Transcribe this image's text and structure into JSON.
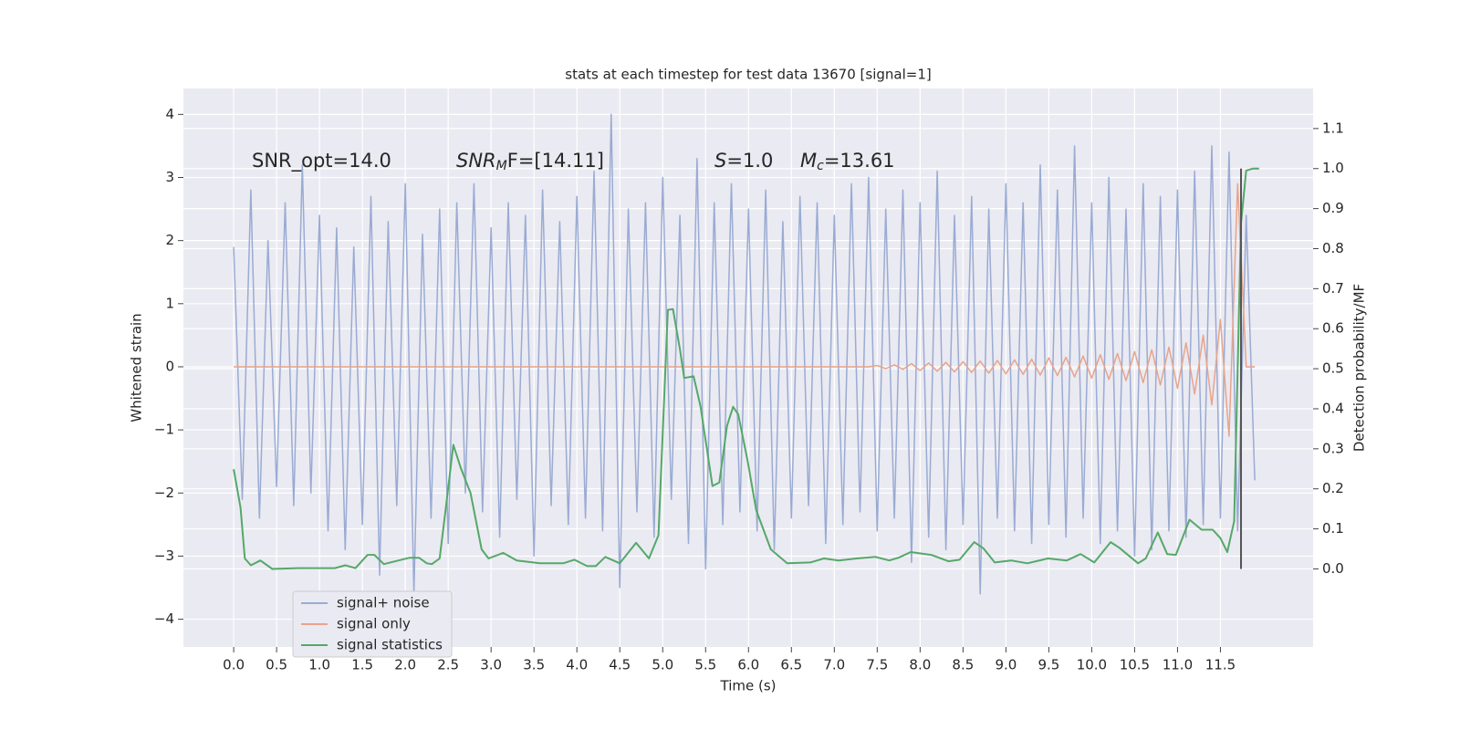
{
  "chart_data": {
    "type": "line",
    "title": "stats at each timestep for test data 13670 [signal=1]",
    "xlabel": "Time (s)",
    "ylabel": "Whitened strain",
    "y2label": "Detection probability/MF",
    "annotations": [
      [
        {
          "text": "SNR_opt=14.0",
          "style": "normal"
        }
      ],
      [
        {
          "text": "SNR",
          "style": "italic"
        },
        {
          "text": "M",
          "style": "sub"
        },
        {
          "text": "F=[14.11]",
          "style": "normal"
        }
      ],
      [
        {
          "text": "S",
          "style": "italic"
        },
        {
          "text": "=1.0",
          "style": "normal"
        }
      ],
      [
        {
          "text": "M",
          "style": "italic"
        },
        {
          "text": "c",
          "style": "sub"
        },
        {
          "text": "=13.61",
          "style": "normal"
        }
      ]
    ],
    "xlim": [
      -0.586,
      12.58
    ],
    "ylim": [
      -4.44,
      4.41
    ],
    "y2lim": [
      -0.195,
      1.2
    ],
    "xticks": [
      {
        "value": 0,
        "label": "0.0"
      },
      {
        "value": 0.5,
        "label": "0.5"
      },
      {
        "value": 1,
        "label": "1.0"
      },
      {
        "value": 1.5,
        "label": "1.5"
      },
      {
        "value": 2,
        "label": "2.0"
      },
      {
        "value": 2.5,
        "label": "2.5"
      },
      {
        "value": 3,
        "label": "3.0"
      },
      {
        "value": 3.5,
        "label": "3.5"
      },
      {
        "value": 4,
        "label": "4.0"
      },
      {
        "value": 4.5,
        "label": "4.5"
      },
      {
        "value": 5,
        "label": "5.0"
      },
      {
        "value": 5.5,
        "label": "5.5"
      },
      {
        "value": 6,
        "label": "6.0"
      },
      {
        "value": 6.5,
        "label": "6.5"
      },
      {
        "value": 7,
        "label": "7.0"
      },
      {
        "value": 7.5,
        "label": "7.5"
      },
      {
        "value": 8,
        "label": "8.0"
      },
      {
        "value": 8.5,
        "label": "8.5"
      },
      {
        "value": 9,
        "label": "9.0"
      },
      {
        "value": 9.5,
        "label": "9.5"
      },
      {
        "value": 10,
        "label": "10.0"
      },
      {
        "value": 10.5,
        "label": "10.5"
      },
      {
        "value": 11,
        "label": "11.0"
      },
      {
        "value": 11.5,
        "label": "11.5"
      }
    ],
    "yticks": [
      {
        "value": -4,
        "label": "−4"
      },
      {
        "value": -3,
        "label": "−3"
      },
      {
        "value": -2,
        "label": "−2"
      },
      {
        "value": -1,
        "label": "−1"
      },
      0,
      1,
      2,
      3,
      4
    ],
    "y2ticks": [
      {
        "value": 0,
        "label": "0.0"
      },
      {
        "value": 0.1,
        "label": "0.1"
      },
      {
        "value": 0.2,
        "label": "0.2"
      },
      {
        "value": 0.3,
        "label": "0.3"
      },
      {
        "value": 0.4,
        "label": "0.4"
      },
      {
        "value": 0.5,
        "label": "0.5"
      },
      {
        "value": 0.6,
        "label": "0.6"
      },
      {
        "value": 0.7,
        "label": "0.7"
      },
      {
        "value": 0.8,
        "label": "0.8"
      },
      {
        "value": 0.9,
        "label": "0.9"
      },
      {
        "value": 1,
        "label": "1.0"
      },
      {
        "value": 1.1,
        "label": "1.1"
      }
    ],
    "grid": true,
    "legend": "lower left",
    "vline": {
      "x": 11.74,
      "ymin": 0,
      "ymax": 1.0,
      "color": "#555555"
    },
    "x": [
      0.0,
      0.1,
      0.2,
      0.3,
      0.4,
      0.5,
      0.6,
      0.7,
      0.8,
      0.9,
      1.0,
      1.1,
      1.2,
      1.3,
      1.4,
      1.5,
      1.6,
      1.7,
      1.8,
      1.9,
      2.0,
      2.1,
      2.2,
      2.3,
      2.4,
      2.5,
      2.6,
      2.7,
      2.8,
      2.9,
      3.0,
      3.1,
      3.2,
      3.3,
      3.4,
      3.5,
      3.6,
      3.7,
      3.8,
      3.9,
      4.0,
      4.1,
      4.2,
      4.3,
      4.4,
      4.5,
      4.6,
      4.7,
      4.8,
      4.9,
      5.0,
      5.1,
      5.2,
      5.3,
      5.4,
      5.5,
      5.6,
      5.7,
      5.8,
      5.9,
      6.0,
      6.1,
      6.2,
      6.3,
      6.4,
      6.5,
      6.6,
      6.7,
      6.8,
      6.9,
      7.0,
      7.1,
      7.2,
      7.3,
      7.4,
      7.5,
      7.6,
      7.7,
      7.8,
      7.9,
      8.0,
      8.1,
      8.2,
      8.3,
      8.4,
      8.5,
      8.6,
      8.7,
      8.8,
      8.9,
      9.0,
      9.1,
      9.2,
      9.3,
      9.4,
      9.5,
      9.6,
      9.7,
      9.8,
      9.9,
      10.0,
      10.1,
      10.2,
      10.3,
      10.4,
      10.5,
      10.6,
      10.7,
      10.8,
      10.9,
      11.0,
      11.1,
      11.2,
      11.3,
      11.4,
      11.5,
      11.6,
      11.7,
      11.8,
      11.9
    ],
    "series": [
      {
        "name": "signal+ noise",
        "color": "#9aabd3",
        "values": [
          1.9,
          -2.1,
          2.8,
          -2.4,
          2.0,
          -1.9,
          2.6,
          -2.2,
          3.2,
          -2.0,
          2.4,
          -2.6,
          2.2,
          -2.9,
          1.9,
          -2.5,
          2.7,
          -3.3,
          2.3,
          -2.2,
          2.9,
          -3.6,
          2.1,
          -2.4,
          2.5,
          -2.8,
          2.6,
          -2.0,
          2.9,
          -2.3,
          2.2,
          -2.7,
          2.6,
          -2.1,
          2.4,
          -3.0,
          2.8,
          -2.2,
          2.3,
          -2.5,
          2.7,
          -2.4,
          3.1,
          -2.6,
          4.0,
          -3.5,
          2.5,
          -2.3,
          2.6,
          -2.7,
          3.0,
          -2.1,
          2.4,
          -2.8,
          3.3,
          -3.2,
          2.6,
          -2.5,
          2.9,
          -2.3,
          2.5,
          -2.6,
          2.8,
          -2.9,
          2.3,
          -2.4,
          2.7,
          -2.2,
          2.6,
          -2.8,
          2.4,
          -2.5,
          2.9,
          -2.3,
          3.0,
          -2.6,
          2.5,
          -2.4,
          2.8,
          -3.1,
          2.6,
          -2.7,
          3.1,
          -2.9,
          2.4,
          -2.5,
          2.7,
          -3.6,
          2.5,
          -2.4,
          2.9,
          -2.6,
          2.6,
          -2.8,
          3.2,
          -2.5,
          2.8,
          -2.7,
          3.5,
          -2.4,
          2.6,
          -2.8,
          3.0,
          -2.6,
          2.5,
          -3.0,
          2.9,
          -2.9,
          2.7,
          -2.6,
          2.8,
          -2.7,
          3.1,
          -2.5,
          3.5,
          -2.4,
          3.4,
          -2.6,
          2.4,
          -1.8
        ]
      },
      {
        "name": "signal only",
        "color": "#e8a48a",
        "values": [
          0,
          0,
          0,
          0,
          0,
          0,
          0,
          0,
          0,
          0,
          0,
          0,
          0,
          0,
          0,
          0,
          0,
          0,
          0,
          0,
          0,
          0,
          0,
          0,
          0,
          0,
          0,
          0,
          0,
          0,
          0,
          0,
          0,
          0,
          0,
          0,
          0,
          0,
          0,
          0,
          0,
          0,
          0,
          0,
          0,
          0,
          0,
          0,
          0,
          0,
          0,
          0,
          0,
          0,
          0,
          0,
          0,
          0,
          0,
          0,
          0,
          0,
          0,
          0,
          0,
          0,
          0,
          0,
          0,
          0,
          0,
          0,
          0,
          0,
          0,
          0.02,
          -0.03,
          0.03,
          -0.04,
          0.05,
          -0.06,
          0.06,
          -0.07,
          0.07,
          -0.08,
          0.08,
          -0.09,
          0.09,
          -0.1,
          0.1,
          -0.11,
          0.11,
          -0.12,
          0.12,
          -0.13,
          0.14,
          -0.14,
          0.15,
          -0.16,
          0.17,
          -0.18,
          0.19,
          -0.2,
          0.21,
          -0.22,
          0.24,
          -0.25,
          0.27,
          -0.29,
          0.31,
          -0.34,
          0.38,
          -0.43,
          0.5,
          -0.6,
          0.75,
          -1.1,
          2.9,
          0,
          0
        ]
      },
      {
        "name": "signal statistics",
        "color": "#55a868",
        "axis": "y2",
        "x": [
          0,
          0.08,
          0.13,
          0.2,
          0.31,
          0.45,
          0.75,
          1.18,
          1.3,
          1.42,
          1.56,
          1.64,
          1.75,
          2.05,
          2.16,
          2.25,
          2.31,
          2.4,
          2.46,
          2.56,
          2.65,
          2.76,
          2.89,
          2.97,
          3.14,
          3.3,
          3.57,
          3.84,
          3.97,
          4.12,
          4.22,
          4.33,
          4.5,
          4.69,
          4.84,
          4.95,
          5.06,
          5.12,
          5.2,
          5.25,
          5.36,
          5.44,
          5.58,
          5.66,
          5.75,
          5.82,
          5.88,
          5.99,
          6.09,
          6.26,
          6.45,
          6.72,
          6.88,
          7.05,
          7.26,
          7.48,
          7.64,
          7.75,
          7.89,
          8.13,
          8.33,
          8.46,
          8.63,
          8.74,
          8.87,
          9.06,
          9.25,
          9.49,
          9.71,
          9.87,
          10.03,
          10.22,
          10.32,
          10.54,
          10.63,
          10.77,
          10.88,
          10.98,
          11.14,
          11.28,
          11.41,
          11.5,
          11.58,
          11.66,
          11.74,
          11.8,
          11.88,
          11.95
        ],
        "values": [
          0.249,
          0.153,
          0.026,
          0.009,
          0.021,
          0.0,
          0.002,
          0.002,
          0.009,
          0.002,
          0.035,
          0.035,
          0.012,
          0.028,
          0.028,
          0.014,
          0.012,
          0.026,
          0.13,
          0.31,
          0.25,
          0.19,
          0.049,
          0.026,
          0.04,
          0.021,
          0.014,
          0.014,
          0.023,
          0.007,
          0.007,
          0.03,
          0.014,
          0.065,
          0.026,
          0.084,
          0.647,
          0.649,
          0.549,
          0.477,
          0.481,
          0.407,
          0.207,
          0.216,
          0.358,
          0.405,
          0.386,
          0.27,
          0.147,
          0.049,
          0.014,
          0.016,
          0.026,
          0.021,
          0.026,
          0.03,
          0.021,
          0.028,
          0.042,
          0.035,
          0.019,
          0.023,
          0.067,
          0.051,
          0.016,
          0.021,
          0.014,
          0.026,
          0.021,
          0.037,
          0.016,
          0.067,
          0.053,
          0.014,
          0.026,
          0.091,
          0.037,
          0.035,
          0.123,
          0.098,
          0.098,
          0.077,
          0.042,
          0.119,
          0.863,
          0.995,
          1.0,
          1.0
        ]
      }
    ]
  }
}
